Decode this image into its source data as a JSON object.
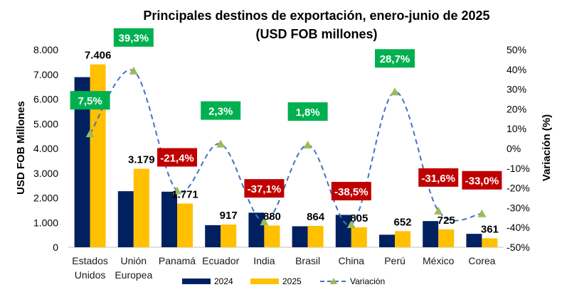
{
  "chart_data": {
    "type": "bar",
    "title": "Principales destinos de exportación, enero-junio de 2025",
    "subtitle": "(USD FOB millones)",
    "ylabel": "USD FOB Millones",
    "y2label": "Variación (%)",
    "ylim": [
      0,
      8000
    ],
    "y2lim": [
      -50,
      50
    ],
    "y_ticks": [
      "0",
      "1.000",
      "2.000",
      "3.000",
      "4.000",
      "5.000",
      "6.000",
      "7.000",
      "8.000"
    ],
    "y2_ticks": [
      "-50%",
      "-40%",
      "-30%",
      "-20%",
      "-10%",
      "0%",
      "10%",
      "20%",
      "30%",
      "40%",
      "50%"
    ],
    "categories": [
      [
        "Estados",
        "Unidos"
      ],
      [
        "Unión",
        "Europea"
      ],
      [
        "Panamá"
      ],
      [
        "Ecuador"
      ],
      [
        "India"
      ],
      [
        "Brasil"
      ],
      [
        "China"
      ],
      [
        "Perú"
      ],
      [
        "México"
      ],
      [
        "Corea"
      ]
    ],
    "series": [
      {
        "name": "2024",
        "type": "bar",
        "color": "#002060",
        "values": [
          6890,
          2270,
          2250,
          895,
          1400,
          850,
          1310,
          507,
          1060,
          543
        ]
      },
      {
        "name": "2025",
        "type": "bar",
        "color": "#FFC000",
        "values": [
          7406,
          3179,
          1771,
          917,
          880,
          864,
          805,
          652,
          725,
          361
        ],
        "labels": [
          "7.406",
          "3.179",
          "1.771",
          "917",
          "880",
          "864",
          "805",
          "652",
          "725",
          "361"
        ]
      },
      {
        "name": "Variación",
        "type": "line",
        "axis": "secondary",
        "color": "#4472C4",
        "marker_color": "#9BBB59",
        "values": [
          7.5,
          39.3,
          -21.4,
          2.3,
          -37.1,
          1.8,
          -38.5,
          28.7,
          -31.6,
          -33.0
        ],
        "labels": [
          "7,5%",
          "39,3%",
          "-21,4%",
          "2,3%",
          "-37,1%",
          "1,8%",
          "-38,5%",
          "28,7%",
          "-31,6%",
          "-33,0%"
        ]
      }
    ],
    "positive_label_color": "#00B050",
    "negative_label_color": "#C00000",
    "grid": false,
    "legend": "bottom"
  }
}
